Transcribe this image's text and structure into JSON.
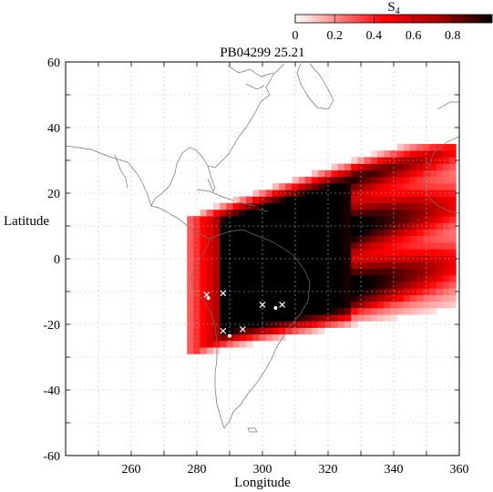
{
  "chart_data": {
    "type": "heatmap",
    "title": "PB04299   25.21",
    "xlabel": "Longitude",
    "ylabel": "Latitude",
    "xlim": [
      240,
      360
    ],
    "ylim": [
      -60,
      60
    ],
    "x_ticks": [
      260,
      280,
      300,
      320,
      340,
      360
    ],
    "y_ticks": [
      -60,
      -40,
      -20,
      0,
      20,
      40,
      60
    ],
    "grid": true,
    "colorbar": {
      "label": "S",
      "label_subscript": "4",
      "placement": "top-right",
      "range": [
        0,
        1
      ],
      "ticks": [
        "0",
        "0.2",
        "0.4",
        "0.6",
        "0.8"
      ],
      "color_low": "#ffffff",
      "color_mid": "#ff0000",
      "color_high": "#000000"
    },
    "region": {
      "description_note": "",
      "lon_range": [
        277,
        358
      ],
      "lat_range": [
        -35,
        34
      ]
    },
    "markers_x": [
      [
        283,
        -11
      ],
      [
        288,
        -10.5
      ],
      [
        300,
        -14
      ],
      [
        306,
        -14
      ],
      [
        288,
        -22
      ],
      [
        294,
        -21.5
      ]
    ],
    "markers_dot": [
      [
        283.5,
        -12
      ],
      [
        304,
        -15
      ],
      [
        290,
        -23.5
      ]
    ]
  }
}
